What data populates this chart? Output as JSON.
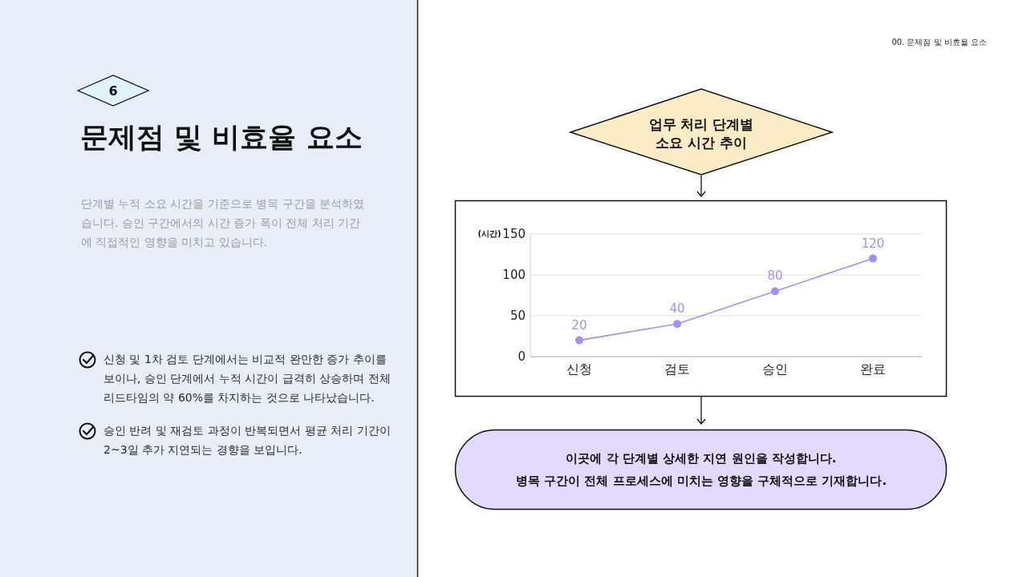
{
  "chart_data": {
    "type": "line",
    "title": "업무 처리 단계별 소요 시간 추이",
    "ylabel": "(시간)",
    "categories": [
      "신청",
      "검토",
      "승인",
      "완료"
    ],
    "series": [
      {
        "color": "#a88ef4",
        "values": [
          20,
          40,
          80,
          120
        ]
      }
    ],
    "ylim": [
      0,
      150
    ],
    "yticks": [
      0,
      50,
      100,
      150
    ],
    "grid": "y",
    "marker": "circle",
    "line_style": "solid",
    "data_labels": true,
    "annotations": [
      "00. 문제점 및 비효율 요소",
      "6",
      "문제점 및 비효율 요소",
      "단계별 누적 소요 시간을 기준으로 병목 구간을 분석하였습니다. 승인 구간에서의 시간 증가 폭이 전체 처리 기간에 직접적인 영향을 미치고 있습니다.",
      "신청 및 1차 검토 단계에서는 비교적 완만한 증가 추이를 보이나, 승인 단계에서 누적 시간이 급격히 상승하며 전체 리드타임의 약 60%를 차지하는 것으로 나타났습니다.",
      "승인 반려 및 재검토 과정이 반복되면서 평균 처리 기간이 2~3일 추가 지연되는 경향을 보입니다.",
      "이곳에 각 단계별 상세한 지연 원인을 작성합니다.",
      "병목 구간이 전체 프로세스에 미치는 영향을 구체적으로 기재합니다."
    ]
  }
}
